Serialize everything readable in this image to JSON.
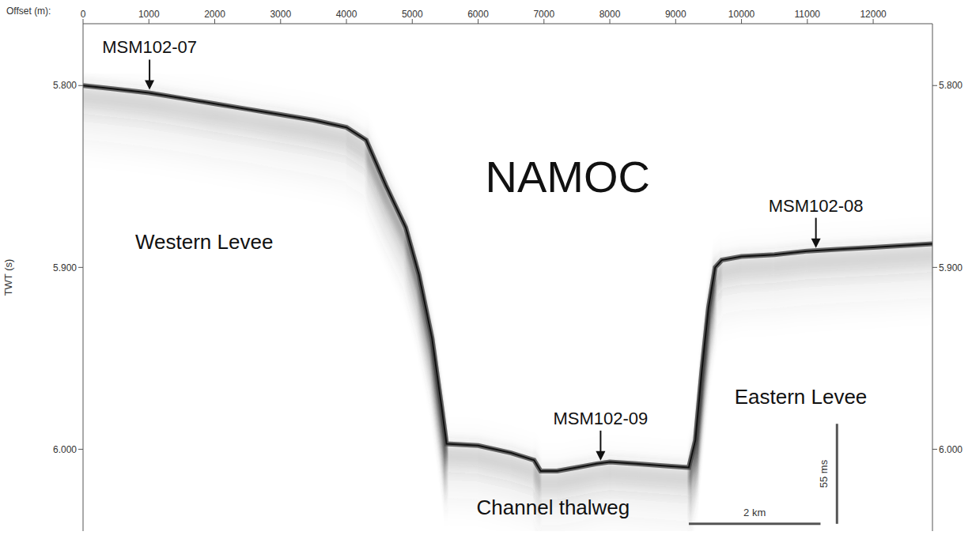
{
  "chart_data": {
    "type": "line",
    "x_label": "Offset (m):",
    "y_label": "TWT (s)",
    "color": "#111111",
    "grid": false,
    "x": [
      0,
      500,
      1000,
      1500,
      2000,
      2500,
      3000,
      3500,
      4000,
      4300,
      4600,
      4900,
      5100,
      5300,
      5450,
      5520,
      6000,
      6500,
      6850,
      6950,
      7200,
      7500,
      7800,
      8000,
      8400,
      8800,
      9200,
      9300,
      9400,
      9500,
      9600,
      9700,
      10000,
      10500,
      11000,
      11500,
      12000,
      12900
    ],
    "values": [
      5.8,
      5.802,
      5.804,
      5.807,
      5.81,
      5.813,
      5.816,
      5.819,
      5.823,
      5.83,
      5.855,
      5.878,
      5.904,
      5.939,
      5.978,
      5.997,
      5.998,
      6.002,
      6.006,
      6.012,
      6.012,
      6.01,
      6.008,
      6.007,
      6.008,
      6.009,
      6.01,
      5.995,
      5.956,
      5.922,
      5.9,
      5.896,
      5.894,
      5.893,
      5.891,
      5.89,
      5.889,
      5.887
    ],
    "xlim": [
      0,
      12900
    ],
    "xticks": [
      0,
      1000,
      2000,
      3000,
      4000,
      5000,
      6000,
      7000,
      8000,
      9000,
      10000,
      11000,
      12000
    ],
    "ylim": [
      5.766,
      6.045
    ],
    "yticks": [
      {
        "value": 5.8,
        "label": "5.800"
      },
      {
        "value": 5.9,
        "label": "5.900"
      },
      {
        "value": 6.0,
        "label": "6.000"
      }
    ],
    "annotations": [
      {
        "text": "NAMOC",
        "x": 7360,
        "y": 5.852
      },
      {
        "text": "Western Levee",
        "x": 1840,
        "y": 5.887
      },
      {
        "text": "Eastern Levee",
        "x": 10900,
        "y": 5.972
      },
      {
        "text": "Channel thalweg",
        "x": 7140,
        "y": 6.033
      }
    ],
    "sites": [
      {
        "name": "MSM102-07",
        "x": 1010,
        "y": 5.804
      },
      {
        "name": "MSM102-09",
        "x": 7860,
        "y": 6.008
      },
      {
        "name": "MSM102-08",
        "x": 11130,
        "y": 5.891
      }
    ],
    "scale_bars": [
      {
        "label": "55 ms",
        "x": [
          11450,
          11450
        ],
        "y": [
          5.986,
          6.041
        ]
      },
      {
        "label": "2 km",
        "x": [
          9200,
          11200
        ],
        "y": [
          6.041,
          6.041
        ]
      }
    ]
  }
}
